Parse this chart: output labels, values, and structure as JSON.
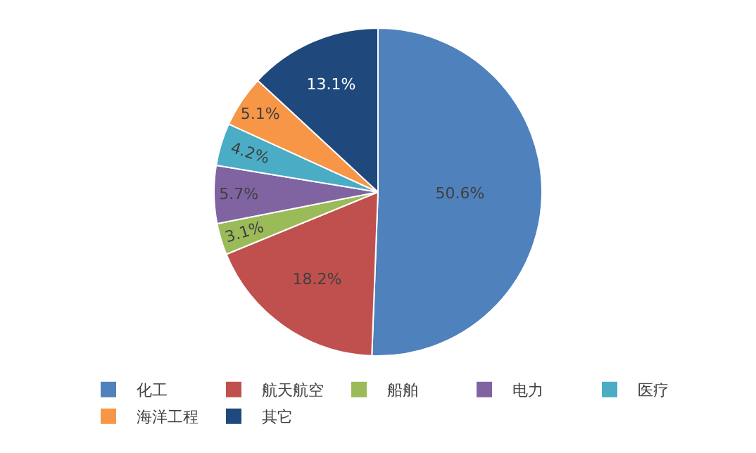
{
  "chart_data": {
    "type": "pie",
    "categories": [
      "化工",
      "航天航空",
      "船舶",
      "电力",
      "医疗",
      "海洋工程",
      "其它"
    ],
    "values": [
      50.6,
      18.2,
      3.1,
      5.7,
      4.2,
      5.1,
      13.1
    ],
    "value_labels": [
      "50.6%",
      "18.2%",
      "3.1%",
      "5.7%",
      "4.2%",
      "5.1%",
      "13.1%"
    ],
    "colors": [
      "#4f81bd",
      "#c0504d",
      "#9bbb59",
      "#8064a2",
      "#4bacc6",
      "#f79646",
      "#1f497d"
    ],
    "legend": "bottom"
  }
}
